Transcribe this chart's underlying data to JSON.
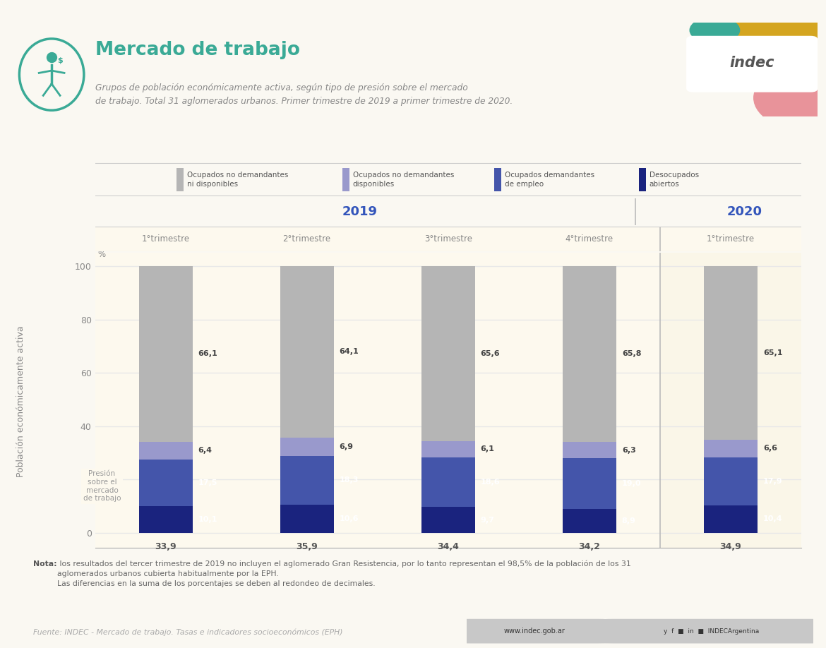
{
  "title": "Mercado de trabajo",
  "subtitle": "Grupos de población económicamente activa, según tipo de presión sobre el mercado\nde trabajo. Total 31 aglomerados urbanos. Primer trimestre de 2019 a primer trimestre de 2020.",
  "ylabel": "Población económicamente activa",
  "quarters": [
    "1°trimestre",
    "2°trimestre",
    "3°trimestre",
    "4°trimestre",
    "1°trimestre"
  ],
  "legend_items": [
    {
      "label": "Ocupados no demandantes\nni disponibles",
      "color": "#b5b5b5"
    },
    {
      "label": "Ocupados no demandantes\ndisponibles",
      "color": "#9999cc"
    },
    {
      "label": "Ocupados demandantes\nde empleo",
      "color": "#4455aa"
    },
    {
      "label": "Desocupados\nabiertos",
      "color": "#1a237e"
    }
  ],
  "seg_nodem": [
    66.1,
    64.1,
    65.6,
    65.8,
    65.1
  ],
  "seg_nodis": [
    6.4,
    6.9,
    6.1,
    6.3,
    6.6
  ],
  "seg_dem": [
    17.5,
    18.3,
    18.6,
    19.0,
    17.9
  ],
  "seg_des": [
    10.1,
    10.6,
    9.7,
    8.9,
    10.4
  ],
  "totals": [
    33.9,
    35.9,
    34.4,
    34.2,
    34.9
  ],
  "pressure_label": "Presión\nsobre el\nmercado\nde trabajo",
  "note_bold": "Nota:",
  "note_text": " los resultados del tercer trimestre de 2019 no incluyen el aglomerado Gran Resistencia, por lo tanto representan el 98,5% de la población de los 31\naglomerados urbanos cubierta habitualmente por la EPH.\nLas diferencias en la suma de los porcentajes se deben al redondeo de decimales.",
  "source": "Fuente: INDEC - Mercado de trabajo. Tasas e indicadores socioeconómicos (EPH)",
  "bg_color": "#faf8f2",
  "chart_bg_2019": "#fdf9ee",
  "chart_bg_2020": "#faf6e8",
  "title_color": "#3aaa96",
  "subtitle_color": "#888888",
  "year_color": "#3355bb",
  "total_color": "#555555",
  "grid_color": "#e8e8e8",
  "tick_color": "#888888",
  "legend_line_color": "#cccccc"
}
